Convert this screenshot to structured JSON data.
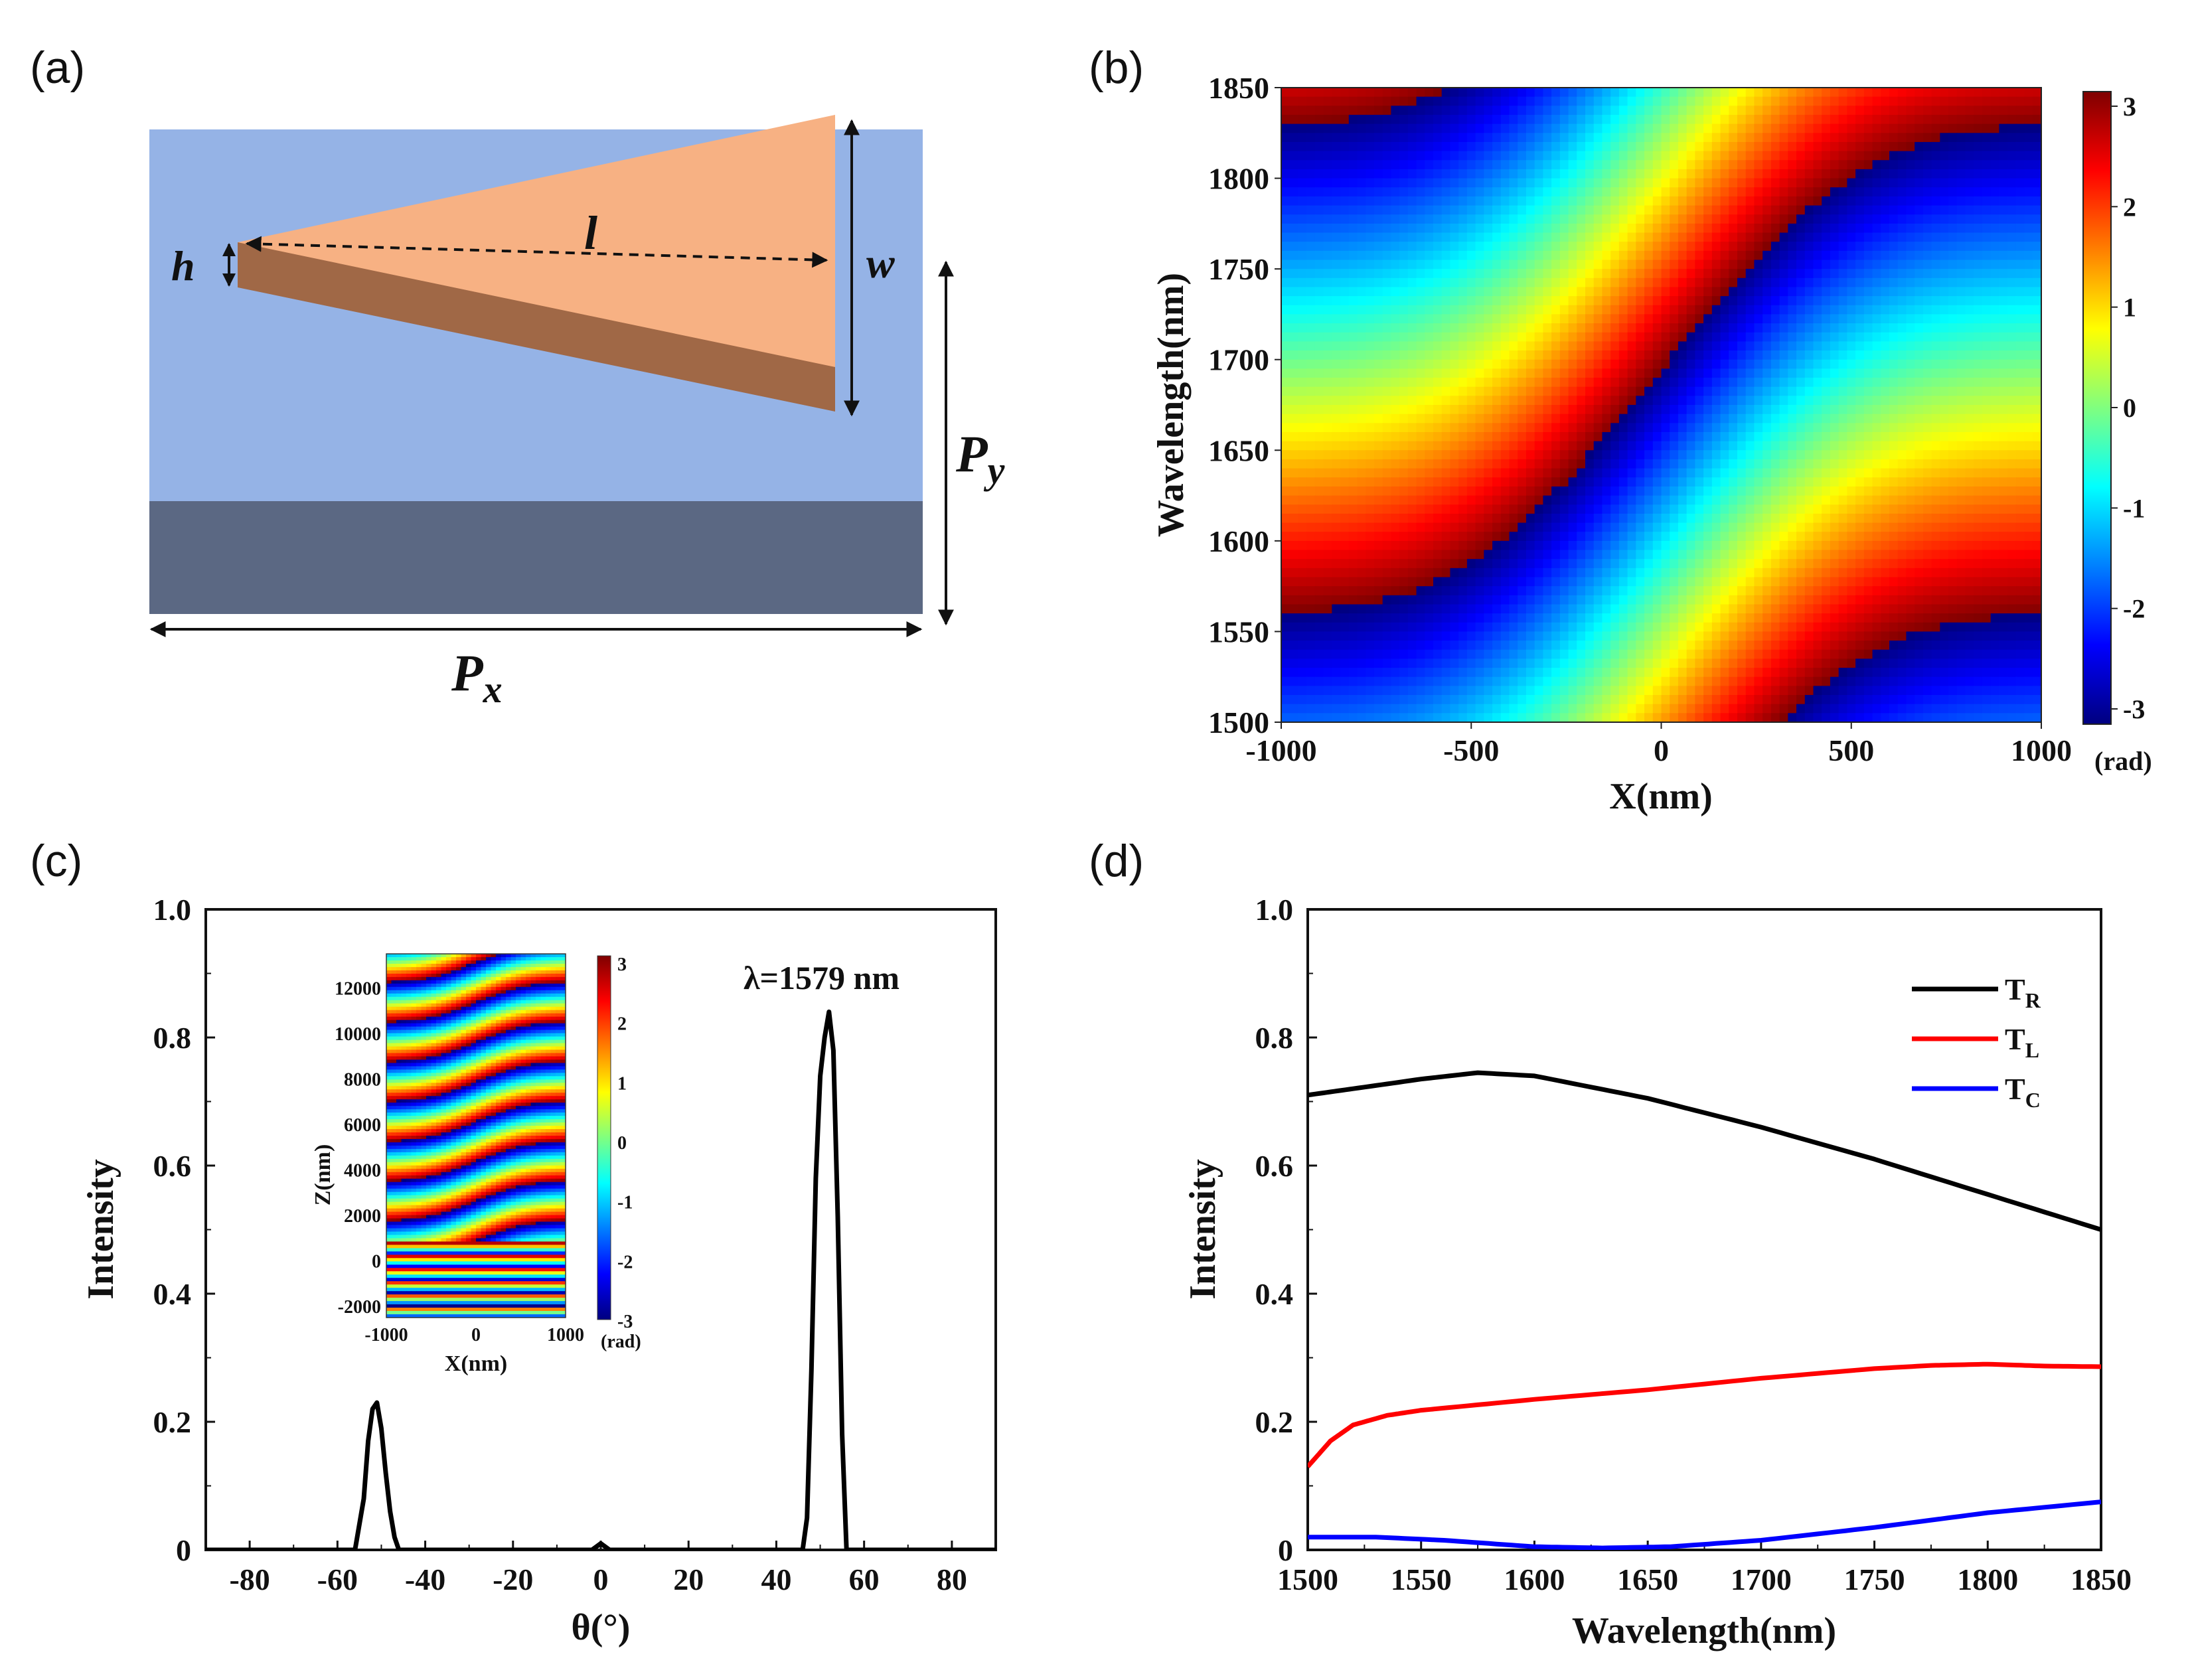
{
  "panels": {
    "a": {
      "label": "(a)"
    },
    "b": {
      "label": "(b)"
    },
    "c": {
      "label": "(c)"
    },
    "d": {
      "label": "(d)"
    }
  },
  "diagram": {
    "labels": {
      "h": "h",
      "l": "l",
      "w": "w",
      "px": "P",
      "px_sub": "x",
      "py": "P",
      "py_sub": "y"
    },
    "colors": {
      "background": "#95b3e6",
      "substrate": "#5b6883",
      "prism_top": "#f7b183",
      "prism_side": "#a06846"
    }
  },
  "chart_data": [
    {
      "id": "b",
      "type": "heatmap",
      "xlabel": "X(nm)",
      "ylabel": "Wavelength(nm)",
      "xlim": [
        -1000,
        1000
      ],
      "ylim": [
        1500,
        1850
      ],
      "xticks": [
        "-1000",
        "-500",
        "0",
        "500",
        "1000"
      ],
      "yticks": [
        "1500",
        "1550",
        "1600",
        "1650",
        "1700",
        "1750",
        "1800",
        "1850"
      ],
      "colorbar": {
        "ticks": [
          "3",
          "2",
          "1",
          "0",
          "-1",
          "-2",
          "-3"
        ],
        "unit": "(rad)",
        "range": [
          -3.14,
          3.14
        ]
      },
      "description_values": {
        "phase_range_rad": [
          -3.14,
          3.14
        ]
      }
    },
    {
      "id": "c",
      "type": "line",
      "xlabel": "θ(°)",
      "ylabel": "Intensity",
      "xlim": [
        -90,
        90
      ],
      "ylim": [
        0,
        1.0
      ],
      "xticks": [
        "-80",
        "-60",
        "-40",
        "-20",
        "0",
        "20",
        "40",
        "60",
        "80"
      ],
      "yticks": [
        "0",
        "0.2",
        "0.4",
        "0.6",
        "0.8",
        "1.0"
      ],
      "annotation": "λ=1579 nm",
      "series": [
        {
          "name": "intensity",
          "color": "#000000",
          "x": [
            -90,
            -56,
            -54,
            -53,
            -52,
            -51,
            -50,
            -49,
            -48,
            -47,
            -46,
            -20,
            -2,
            0,
            2,
            20,
            46,
            47,
            48,
            49,
            50,
            51,
            52,
            53,
            54,
            55,
            56,
            90
          ],
          "y": [
            0,
            0,
            0.08,
            0.17,
            0.22,
            0.23,
            0.19,
            0.12,
            0.06,
            0.02,
            0,
            0,
            0,
            0.01,
            0,
            0,
            0,
            0.05,
            0.28,
            0.58,
            0.74,
            0.8,
            0.84,
            0.78,
            0.52,
            0.18,
            0,
            0
          ]
        }
      ],
      "inset": {
        "type": "heatmap",
        "xlabel": "X(nm)",
        "ylabel": "Z(nm)",
        "xticks": [
          "-1000",
          "0",
          "1000"
        ],
        "yticks": [
          "12000",
          "10000",
          "8000",
          "6000",
          "4000",
          "2000",
          "0",
          "-2000"
        ],
        "colorbar": {
          "ticks": [
            "3",
            "2",
            "1",
            "0",
            "-1",
            "-2",
            "-3"
          ],
          "unit": "(rad)"
        }
      }
    },
    {
      "id": "d",
      "type": "line",
      "xlabel": "Wavelength(nm)",
      "ylabel": "Intensity",
      "xlim": [
        1500,
        1850
      ],
      "ylim": [
        0,
        1.0
      ],
      "xticks": [
        "1500",
        "1550",
        "1600",
        "1650",
        "1700",
        "1750",
        "1800",
        "1850"
      ],
      "yticks": [
        "0",
        "0.2",
        "0.4",
        "0.6",
        "0.8",
        "1.0"
      ],
      "series": [
        {
          "name": "T",
          "sub": "R",
          "color": "#000000",
          "x": [
            1500,
            1520,
            1550,
            1575,
            1600,
            1650,
            1700,
            1750,
            1800,
            1850
          ],
          "y": [
            0.71,
            0.72,
            0.735,
            0.745,
            0.74,
            0.705,
            0.66,
            0.61,
            0.555,
            0.5
          ]
        },
        {
          "name": "T",
          "sub": "L",
          "color": "#ff0000",
          "x": [
            1500,
            1510,
            1520,
            1535,
            1550,
            1600,
            1650,
            1700,
            1750,
            1775,
            1800,
            1825,
            1850
          ],
          "y": [
            0.13,
            0.17,
            0.195,
            0.21,
            0.218,
            0.235,
            0.25,
            0.268,
            0.283,
            0.288,
            0.29,
            0.287,
            0.286
          ]
        },
        {
          "name": "T",
          "sub": "C",
          "color": "#0000ff",
          "x": [
            1500,
            1530,
            1560,
            1600,
            1630,
            1660,
            1700,
            1750,
            1800,
            1850
          ],
          "y": [
            0.02,
            0.02,
            0.015,
            0.005,
            0.003,
            0.005,
            0.015,
            0.035,
            0.058,
            0.075
          ]
        }
      ]
    }
  ]
}
